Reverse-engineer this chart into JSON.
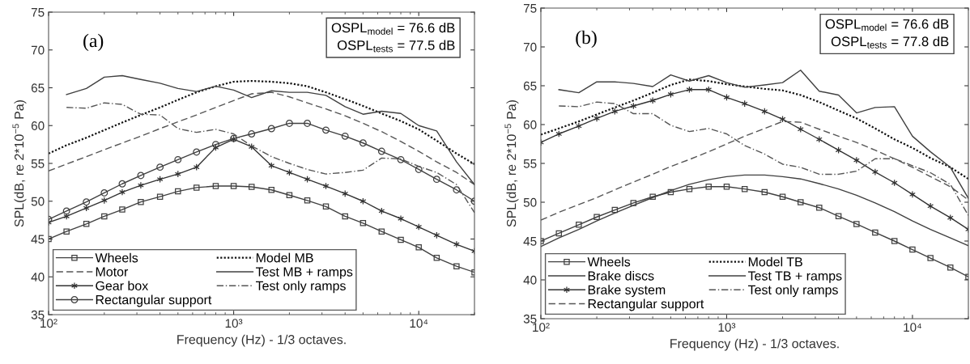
{
  "chart_data": [
    {
      "type": "line",
      "xlabel": "Frequency (Hz) - 1/3 octaves.",
      "ylabel": "SPL(dB, re 2*10$^{−5}$ Pa)",
      "annotations": [
        "(a)",
        "OSPL$_{model}$ = 76.6 dB",
        "OSPL$_{tests}$ = 77.5 dB"
      ],
      "x": [
        100,
        125,
        160,
        200,
        250,
        315,
        400,
        500,
        630,
        800,
        1000,
        1250,
        1600,
        2000,
        2500,
        3150,
        4000,
        5000,
        6300,
        8000,
        10000,
        12500,
        16000,
        20000
      ],
      "log": "x",
      "xlim": [
        100,
        20000
      ],
      "xticks": [
        {
          "value": 100,
          "label": "10²"
        },
        {
          "value": 1000,
          "label": "10³"
        },
        {
          "value": 10000,
          "label": "10⁴"
        }
      ],
      "ylim": [
        35,
        75
      ],
      "yticks": [
        35,
        40,
        45,
        50,
        55,
        60,
        65,
        70,
        75
      ],
      "grid": false,
      "legend": "bottom left",
      "series": [
        {
          "name": "Wheels",
          "color": "#404040",
          "marker": "square",
          "line_style": "solid",
          "values": [
            45.0,
            46.0,
            47.0,
            48.0,
            48.9,
            49.9,
            50.6,
            51.3,
            51.8,
            52.0,
            52.0,
            51.9,
            51.5,
            50.8,
            50.1,
            49.3,
            48.0,
            47.1,
            46.0,
            44.9,
            43.9,
            42.5,
            41.4,
            40.6
          ]
        },
        {
          "name": "Motor",
          "color": "#555555",
          "marker": "none",
          "line_style": "dashed",
          "values": [
            54.0,
            54.9,
            55.9,
            56.8,
            57.7,
            58.6,
            59.6,
            60.5,
            61.4,
            62.4,
            63.3,
            64.2,
            64.4,
            63.8,
            63.0,
            62.2,
            61.3,
            60.3,
            59.2,
            57.9,
            56.6,
            55.2,
            53.8,
            52.2
          ]
        },
        {
          "name": "Gear box",
          "color": "#333333",
          "marker": "cross",
          "line_style": "solid",
          "values": [
            47.2,
            48.0,
            49.1,
            50.1,
            51.2,
            52.1,
            52.9,
            53.6,
            54.5,
            57.1,
            58.2,
            57.2,
            54.7,
            53.8,
            52.9,
            52.0,
            51.0,
            50.0,
            48.7,
            47.7,
            46.6,
            45.5,
            44.3,
            43.4
          ]
        },
        {
          "name": "Rectangular support",
          "color": "#404040",
          "marker": "circle",
          "line_style": "solid",
          "values": [
            47.6,
            48.7,
            49.9,
            51.1,
            52.3,
            53.4,
            54.5,
            55.5,
            56.5,
            57.5,
            58.3,
            58.9,
            59.6,
            60.3,
            60.3,
            59.4,
            58.6,
            57.7,
            56.6,
            55.5,
            54.2,
            52.9,
            51.5,
            50.0
          ]
        },
        {
          "name": "Model MB",
          "color": "#111111",
          "marker": "none",
          "line_style": "dotted",
          "values": [
            56.3,
            57.4,
            58.4,
            59.4,
            60.4,
            61.4,
            62.4,
            63.4,
            64.4,
            65.2,
            65.8,
            65.9,
            65.8,
            65.6,
            65.2,
            64.4,
            63.5,
            62.6,
            61.6,
            60.6,
            59.5,
            58.0,
            56.3,
            54.9
          ]
        },
        {
          "name": "Test MB + ramps",
          "color": "#404040",
          "marker": "none",
          "line_style": "solid",
          "values": [
            null,
            64.1,
            64.9,
            66.4,
            66.6,
            66.1,
            65.6,
            64.9,
            64.5,
            65.2,
            64.7,
            63.7,
            64.6,
            64.4,
            64.4,
            64.0,
            62.5,
            61.5,
            61.9,
            61.6,
            60.0,
            59.3,
            55.2,
            52.2
          ]
        },
        {
          "name": "Test only ramps",
          "color": "#555555",
          "marker": "none",
          "line_style": "dashdot",
          "values": [
            null,
            62.4,
            62.3,
            63.0,
            62.8,
            61.5,
            61.4,
            59.6,
            59.1,
            59.5,
            58.9,
            57.3,
            55.9,
            55.0,
            54.2,
            53.6,
            53.8,
            54.1,
            55.7,
            55.6,
            54.6,
            53.8,
            52.2,
            48.5
          ]
        }
      ]
    },
    {
      "type": "line",
      "xlabel": "Frequency (Hz) - 1/3 octaves.",
      "ylabel": "SPL(dB, re 2*10$^{−5}$ Pa)",
      "annotations": [
        "(b)",
        "OSPL$_{model}$ = 76.6 dB",
        "OSPL$_{tests}$ = 77.8 dB"
      ],
      "x": [
        100,
        125,
        160,
        200,
        250,
        315,
        400,
        500,
        630,
        800,
        1000,
        1250,
        1600,
        2000,
        2500,
        3150,
        4000,
        5000,
        6300,
        8000,
        10000,
        12500,
        16000,
        20000
      ],
      "log": "x",
      "xlim": [
        100,
        20000
      ],
      "xticks": [
        {
          "value": 100,
          "label": "10²"
        },
        {
          "value": 1000,
          "label": "10³"
        },
        {
          "value": 10000,
          "label": "10⁴"
        }
      ],
      "ylim": [
        35,
        75
      ],
      "yticks": [
        35,
        40,
        45,
        50,
        55,
        60,
        65,
        70,
        75
      ],
      "grid": false,
      "legend": "bottom left",
      "series": [
        {
          "name": "Wheels",
          "color": "#404040",
          "marker": "square",
          "line_style": "solid",
          "values": [
            45.0,
            46.0,
            47.1,
            48.1,
            49.0,
            49.9,
            50.7,
            51.3,
            51.7,
            52.0,
            52.0,
            51.7,
            51.3,
            50.7,
            50.0,
            49.3,
            48.2,
            47.2,
            46.1,
            45.0,
            43.9,
            42.8,
            41.6,
            40.4
          ]
        },
        {
          "name": "Brake discs",
          "color": "#404040",
          "marker": "none",
          "line_style": "solid",
          "values": [
            44.3,
            45.4,
            46.5,
            47.6,
            48.6,
            49.6,
            50.6,
            51.5,
            52.3,
            52.9,
            53.3,
            53.5,
            53.5,
            53.3,
            53.0,
            52.4,
            51.7,
            50.9,
            49.9,
            48.8,
            47.6,
            46.5,
            45.4,
            44.4
          ]
        },
        {
          "name": "Brake system",
          "color": "#333333",
          "marker": "cross",
          "line_style": "solid",
          "values": [
            57.7,
            58.8,
            59.8,
            60.8,
            61.7,
            62.4,
            63.1,
            63.9,
            64.5,
            64.5,
            63.5,
            62.7,
            61.7,
            60.7,
            59.4,
            58.1,
            56.7,
            55.4,
            53.9,
            52.5,
            51.0,
            49.5,
            48.0,
            46.5
          ]
        },
        {
          "name": "Rectangular support",
          "color": "#555555",
          "marker": "none",
          "line_style": "dashed",
          "values": [
            47.7,
            48.7,
            49.7,
            50.6,
            51.6,
            52.6,
            53.6,
            54.6,
            55.5,
            56.5,
            57.5,
            58.5,
            59.5,
            60.4,
            60.3,
            59.4,
            58.5,
            57.7,
            56.7,
            55.6,
            54.5,
            53.3,
            52.0,
            50.3
          ]
        },
        {
          "name": "Model TB",
          "color": "#111111",
          "marker": "none",
          "line_style": "dotted",
          "values": [
            58.7,
            59.5,
            60.4,
            61.3,
            62.2,
            63.1,
            64.1,
            65.1,
            65.8,
            65.6,
            65.2,
            64.9,
            64.6,
            64.4,
            63.8,
            62.9,
            61.8,
            60.8,
            59.5,
            58.1,
            57.0,
            55.7,
            54.5,
            53.0
          ]
        },
        {
          "name": "Test TB + ramps",
          "color": "#404040",
          "marker": "none",
          "line_style": "solid",
          "values": [
            null,
            64.5,
            64.1,
            65.5,
            65.5,
            65.3,
            64.9,
            66.4,
            65.6,
            66.3,
            65.4,
            64.8,
            65.1,
            65.4,
            67.0,
            64.3,
            63.8,
            61.5,
            62.2,
            62.3,
            58.5,
            56.5,
            54.5,
            50.5
          ]
        },
        {
          "name": "Test only ramps",
          "color": "#555555",
          "marker": "none",
          "line_style": "dashdot",
          "values": [
            null,
            62.4,
            62.3,
            62.9,
            62.7,
            61.4,
            61.4,
            59.9,
            59.1,
            59.5,
            58.8,
            57.3,
            56.2,
            54.9,
            54.5,
            53.6,
            53.6,
            54.0,
            55.6,
            55.6,
            54.7,
            53.8,
            52.3,
            48.3
          ]
        }
      ]
    }
  ]
}
